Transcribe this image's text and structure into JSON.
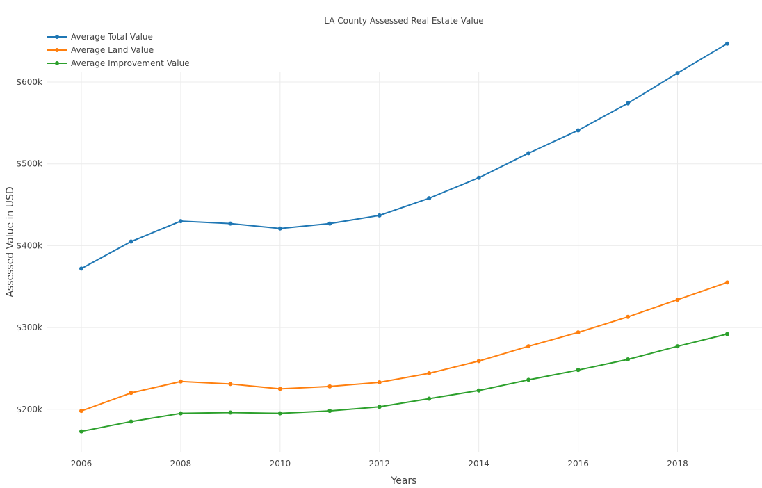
{
  "chart_data": {
    "type": "line",
    "title": "LA County Assessed Real Estate Value",
    "xlabel": "Years",
    "ylabel": "Assessed Value in USD",
    "x": [
      2006,
      2007,
      2008,
      2009,
      2010,
      2011,
      2012,
      2013,
      2014,
      2015,
      2016,
      2017,
      2018,
      2019
    ],
    "xlim": [
      2005.3,
      2019.7
    ],
    "ylim": [
      148000,
      668000
    ],
    "x_ticks": [
      2006,
      2008,
      2010,
      2012,
      2014,
      2016,
      2018
    ],
    "y_ticks": [
      200000,
      300000,
      400000,
      500000,
      600000
    ],
    "y_tick_labels": [
      "$200k",
      "$300k",
      "$400k",
      "$500k",
      "$600k"
    ],
    "grid": true,
    "legend_position": "top-left",
    "series": [
      {
        "name": "Average Total Value",
        "color": "#1f77b4",
        "values": [
          372000,
          405000,
          430000,
          427000,
          421000,
          427000,
          437000,
          458000,
          483000,
          513000,
          541000,
          574000,
          611000,
          647000
        ]
      },
      {
        "name": "Average Land Value",
        "color": "#ff7f0e",
        "values": [
          198000,
          220000,
          234000,
          231000,
          225000,
          228000,
          233000,
          244000,
          259000,
          277000,
          294000,
          313000,
          334000,
          355000
        ]
      },
      {
        "name": "Average Improvement Value",
        "color": "#2ca02c",
        "values": [
          173000,
          185000,
          195000,
          196000,
          195000,
          198000,
          203000,
          213000,
          223000,
          236000,
          248000,
          261000,
          277000,
          292000
        ]
      }
    ]
  }
}
